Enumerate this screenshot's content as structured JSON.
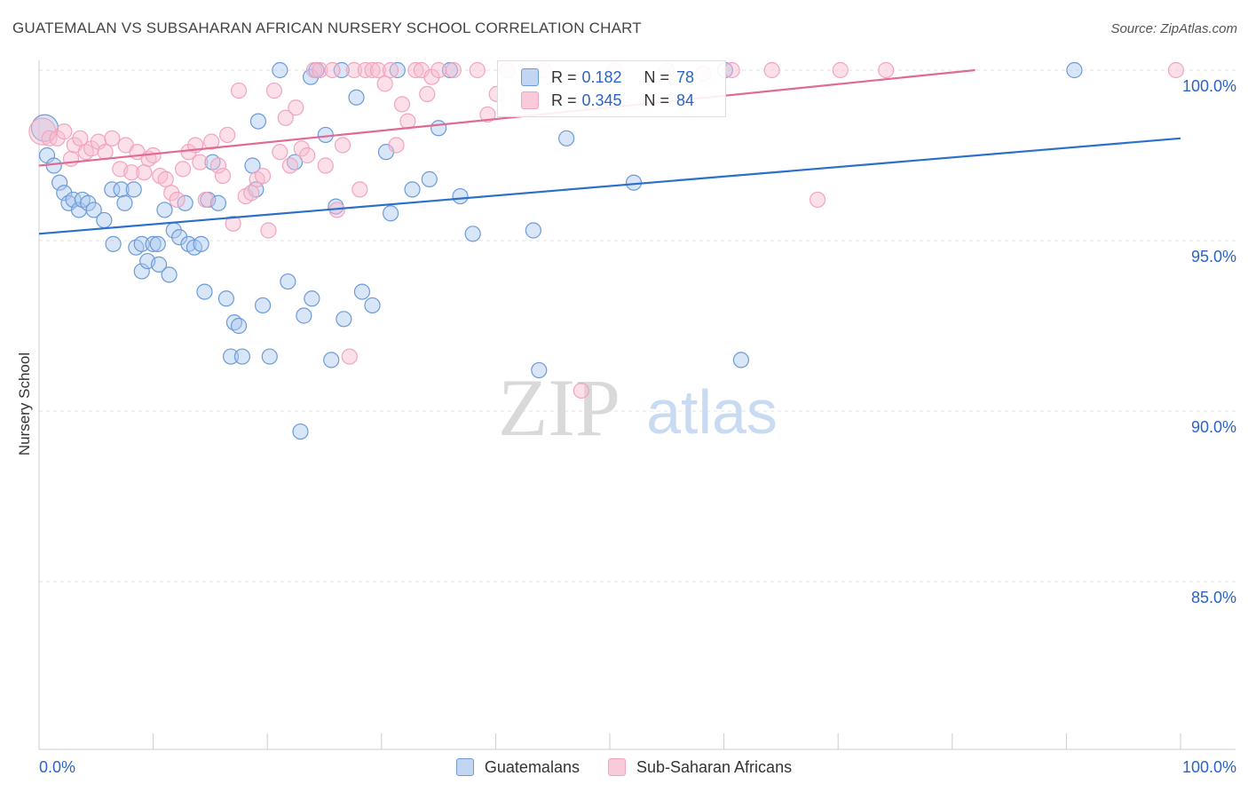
{
  "header": {
    "title": "GUATEMALAN VS SUBSAHARAN AFRICAN NURSERY SCHOOL CORRELATION CHART",
    "source": "Source: ZipAtlas.com"
  },
  "watermark": {
    "zip": "ZIP",
    "atlas": "atlas"
  },
  "legend": {
    "series": [
      {
        "r_label": "R =",
        "r_value": "0.182",
        "n_label": "N =",
        "n_value": "78"
      },
      {
        "r_label": "R =",
        "r_value": "0.345",
        "n_label": "N =",
        "n_value": "84"
      }
    ]
  },
  "bottom_legend": [
    "Guatemalans",
    "Sub-Saharan Africans"
  ],
  "chart_data": {
    "type": "scatter",
    "title": "GUATEMALAN VS SUBSAHARAN AFRICAN NURSERY SCHOOL CORRELATION CHART",
    "xlabel": "",
    "ylabel": "Nursery School",
    "xlim": [
      0,
      100
    ],
    "ylim": [
      80.5,
      100.3
    ],
    "x_tick_labels": [
      "0.0%",
      "100.0%"
    ],
    "y_ticks": [
      85,
      90,
      95,
      100
    ],
    "y_tick_labels": [
      "85.0%",
      "90.0%",
      "95.0%",
      "100.0%"
    ],
    "grid": true,
    "legend_position": "top-center",
    "series": [
      {
        "name": "Guatemalans",
        "color": "#6b9bd8",
        "line_color": "#2b6fcc",
        "trend": [
          [
            0,
            95.2
          ],
          [
            100,
            98.0
          ]
        ],
        "points": [
          [
            0.5,
            98.3
          ],
          [
            0.7,
            97.5
          ],
          [
            1.3,
            97.2
          ],
          [
            1.8,
            96.7
          ],
          [
            2.2,
            96.4
          ],
          [
            2.6,
            96.1
          ],
          [
            3.0,
            96.2
          ],
          [
            3.5,
            95.9
          ],
          [
            3.8,
            96.2
          ],
          [
            4.3,
            96.1
          ],
          [
            4.8,
            95.9
          ],
          [
            5.7,
            95.6
          ],
          [
            6.4,
            96.5
          ],
          [
            7.2,
            96.5
          ],
          [
            6.5,
            94.9
          ],
          [
            7.5,
            96.1
          ],
          [
            8.3,
            96.5
          ],
          [
            8.5,
            94.8
          ],
          [
            9.0,
            94.1
          ],
          [
            9.0,
            94.9
          ],
          [
            9.5,
            94.4
          ],
          [
            10.0,
            94.9
          ],
          [
            10.4,
            94.9
          ],
          [
            10.5,
            94.3
          ],
          [
            11.0,
            95.9
          ],
          [
            11.4,
            94.0
          ],
          [
            11.8,
            95.3
          ],
          [
            12.3,
            95.1
          ],
          [
            12.8,
            96.1
          ],
          [
            13.1,
            94.9
          ],
          [
            13.6,
            94.8
          ],
          [
            14.2,
            94.9
          ],
          [
            14.5,
            93.5
          ],
          [
            14.8,
            96.2
          ],
          [
            15.2,
            97.3
          ],
          [
            15.7,
            96.1
          ],
          [
            16.4,
            93.3
          ],
          [
            16.8,
            91.6
          ],
          [
            17.1,
            92.6
          ],
          [
            17.5,
            92.5
          ],
          [
            17.8,
            91.6
          ],
          [
            18.7,
            97.2
          ],
          [
            19.0,
            96.5
          ],
          [
            19.2,
            98.5
          ],
          [
            19.6,
            93.1
          ],
          [
            20.2,
            91.6
          ],
          [
            21.1,
            100.0
          ],
          [
            21.8,
            93.8
          ],
          [
            22.4,
            97.3
          ],
          [
            22.9,
            89.4
          ],
          [
            23.2,
            92.8
          ],
          [
            23.8,
            99.8
          ],
          [
            23.9,
            93.3
          ],
          [
            24.3,
            100.0
          ],
          [
            25.1,
            98.1
          ],
          [
            25.6,
            91.5
          ],
          [
            26.0,
            96.0
          ],
          [
            26.5,
            100.0
          ],
          [
            26.7,
            92.7
          ],
          [
            27.8,
            99.2
          ],
          [
            28.3,
            93.5
          ],
          [
            29.2,
            93.1
          ],
          [
            30.4,
            97.6
          ],
          [
            30.8,
            95.8
          ],
          [
            31.4,
            100.0
          ],
          [
            32.7,
            96.5
          ],
          [
            34.2,
            96.8
          ],
          [
            35.0,
            98.3
          ],
          [
            36.0,
            100.0
          ],
          [
            36.9,
            96.3
          ],
          [
            38.0,
            95.2
          ],
          [
            43.3,
            95.3
          ],
          [
            43.8,
            91.2
          ],
          [
            46.2,
            98.0
          ],
          [
            52.1,
            96.7
          ],
          [
            60.1,
            100.0
          ],
          [
            61.5,
            91.5
          ],
          [
            90.7,
            100.0
          ]
        ]
      },
      {
        "name": "Sub-Saharan Africans",
        "color": "#f2a4be",
        "line_color": "#e06a93",
        "trend": [
          [
            0,
            97.2
          ],
          [
            82,
            100.0
          ]
        ],
        "points": [
          [
            0.3,
            98.2
          ],
          [
            0.9,
            98.0
          ],
          [
            1.6,
            98.0
          ],
          [
            2.2,
            98.2
          ],
          [
            2.8,
            97.4
          ],
          [
            3.1,
            97.8
          ],
          [
            3.6,
            98.0
          ],
          [
            4.1,
            97.6
          ],
          [
            4.6,
            97.7
          ],
          [
            5.2,
            97.9
          ],
          [
            5.8,
            97.6
          ],
          [
            6.4,
            98.0
          ],
          [
            7.1,
            97.1
          ],
          [
            7.6,
            97.8
          ],
          [
            8.1,
            97.0
          ],
          [
            8.6,
            97.6
          ],
          [
            9.2,
            97.0
          ],
          [
            9.6,
            97.4
          ],
          [
            10.0,
            97.5
          ],
          [
            10.6,
            96.9
          ],
          [
            11.1,
            96.8
          ],
          [
            11.6,
            96.4
          ],
          [
            12.1,
            96.2
          ],
          [
            12.6,
            97.1
          ],
          [
            13.1,
            97.6
          ],
          [
            13.7,
            97.8
          ],
          [
            14.1,
            97.3
          ],
          [
            14.6,
            96.2
          ],
          [
            15.1,
            97.9
          ],
          [
            15.7,
            97.2
          ],
          [
            16.1,
            96.9
          ],
          [
            16.5,
            98.1
          ],
          [
            17.0,
            95.5
          ],
          [
            17.5,
            99.4
          ],
          [
            18.1,
            96.3
          ],
          [
            18.6,
            96.4
          ],
          [
            19.1,
            96.8
          ],
          [
            19.6,
            96.9
          ],
          [
            20.1,
            95.3
          ],
          [
            20.6,
            99.4
          ],
          [
            21.1,
            97.6
          ],
          [
            21.6,
            98.6
          ],
          [
            22.0,
            97.2
          ],
          [
            22.5,
            98.9
          ],
          [
            23.0,
            97.7
          ],
          [
            23.5,
            97.5
          ],
          [
            24.1,
            100.0
          ],
          [
            24.6,
            100.0
          ],
          [
            25.1,
            97.2
          ],
          [
            25.7,
            100.0
          ],
          [
            26.1,
            95.9
          ],
          [
            26.6,
            97.8
          ],
          [
            27.2,
            91.6
          ],
          [
            27.6,
            100.0
          ],
          [
            28.1,
            96.5
          ],
          [
            28.6,
            100.0
          ],
          [
            29.2,
            100.0
          ],
          [
            29.7,
            100.0
          ],
          [
            30.3,
            99.6
          ],
          [
            30.8,
            100.0
          ],
          [
            31.3,
            97.8
          ],
          [
            31.8,
            99.0
          ],
          [
            32.3,
            98.5
          ],
          [
            33.0,
            100.0
          ],
          [
            33.5,
            100.0
          ],
          [
            34.0,
            99.3
          ],
          [
            34.4,
            99.8
          ],
          [
            35.0,
            100.0
          ],
          [
            36.3,
            100.0
          ],
          [
            38.4,
            100.0
          ],
          [
            39.3,
            98.7
          ],
          [
            40.1,
            99.3
          ],
          [
            41.0,
            100.0
          ],
          [
            44.2,
            100.0
          ],
          [
            47.5,
            90.6
          ],
          [
            50.4,
            100.0
          ],
          [
            55.0,
            100.0
          ],
          [
            58.2,
            99.9
          ],
          [
            60.7,
            100.0
          ],
          [
            64.2,
            100.0
          ],
          [
            68.2,
            96.2
          ],
          [
            70.2,
            100.0
          ],
          [
            74.2,
            100.0
          ],
          [
            99.6,
            100.0
          ]
        ]
      }
    ]
  }
}
